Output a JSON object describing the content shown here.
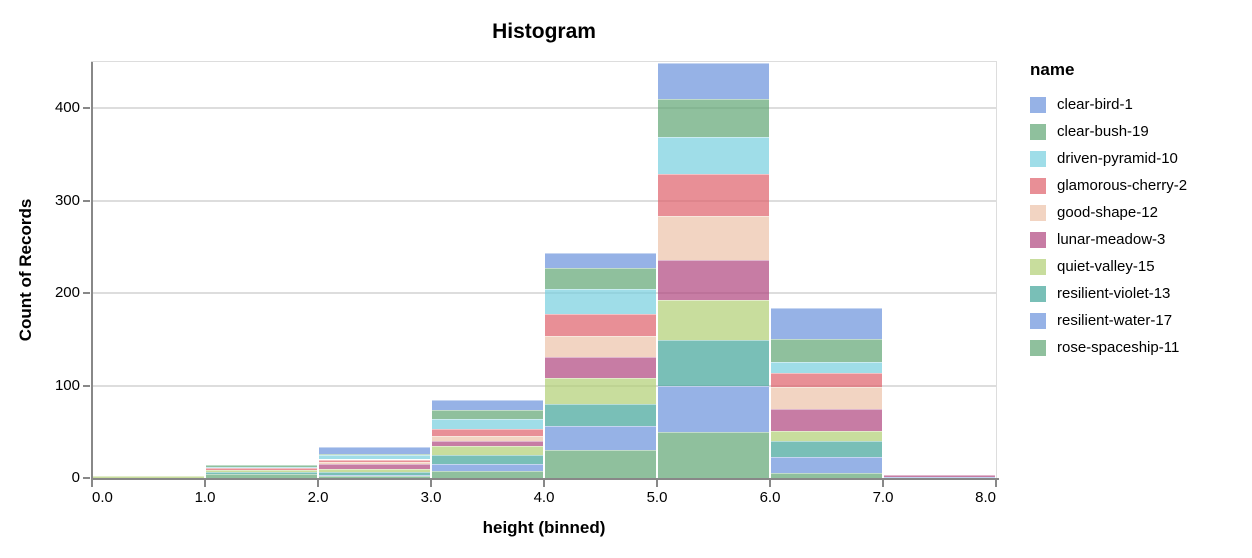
{
  "chart_data": {
    "type": "bar",
    "subtype": "stacked-histogram",
    "title": "Histogram",
    "xlabel": "height (binned)",
    "ylabel": "Count of Records",
    "legend_title": "name",
    "legend_position": "right",
    "grid": true,
    "xlim": [
      0,
      8
    ],
    "ylim": [
      0,
      450
    ],
    "x_bin_edges": [
      0,
      1,
      2,
      3,
      4,
      5,
      6,
      7,
      8
    ],
    "x_tick_labels": [
      "0.0",
      "1.0",
      "2.0",
      "3.0",
      "4.0",
      "5.0",
      "6.0",
      "7.0",
      "8.0"
    ],
    "y_ticks": [
      0,
      100,
      200,
      300,
      400
    ],
    "y_tick_labels": [
      "0",
      "100",
      "200",
      "300",
      "400"
    ],
    "stack_order": "first-series-on-top",
    "bar_opacity": 0.7,
    "bin_totals": [
      2,
      14,
      33,
      84,
      243,
      449,
      184,
      3
    ],
    "series": [
      {
        "name": "clear-bird-1",
        "color": "#6a92db",
        "values": [
          0,
          0,
          7,
          10,
          16,
          39,
          34,
          0
        ]
      },
      {
        "name": "clear-bush-19",
        "color": "#5fa574",
        "values": [
          0,
          2,
          1,
          10,
          23,
          41,
          25,
          0
        ]
      },
      {
        "name": "driven-pyramid-10",
        "color": "#76cede",
        "values": [
          0,
          1,
          5,
          11,
          27,
          40,
          11,
          0
        ]
      },
      {
        "name": "glamorous-cherry-2",
        "color": "#de6069",
        "values": [
          0,
          2,
          3,
          8,
          23,
          46,
          16,
          0
        ]
      },
      {
        "name": "good-shape-12",
        "color": "#ecc2a8",
        "values": [
          0,
          0,
          2,
          5,
          23,
          47,
          23,
          0
        ]
      },
      {
        "name": "lunar-meadow-3",
        "color": "#af457d",
        "values": [
          0,
          0,
          5,
          5,
          23,
          43,
          24,
          2
        ]
      },
      {
        "name": "quiet-valley-15",
        "color": "#b0ce73",
        "values": [
          2,
          2,
          3,
          10,
          28,
          44,
          11,
          0
        ]
      },
      {
        "name": "resilient-violet-13",
        "color": "#40a498",
        "values": [
          0,
          3,
          4,
          10,
          24,
          49,
          17,
          0
        ]
      },
      {
        "name": "resilient-water-17",
        "color": "#6a92db",
        "values": [
          0,
          0,
          1,
          7,
          26,
          50,
          18,
          1
        ]
      },
      {
        "name": "rose-spaceship-11",
        "color": "#5fa574",
        "values": [
          0,
          4,
          2,
          8,
          30,
          50,
          5,
          0
        ]
      }
    ],
    "style": {
      "background": "#ffffff",
      "grid_color": "#dddddd",
      "view_border_color": "#dddddd",
      "axis_color": "#888888",
      "text_color": "#000000"
    }
  }
}
